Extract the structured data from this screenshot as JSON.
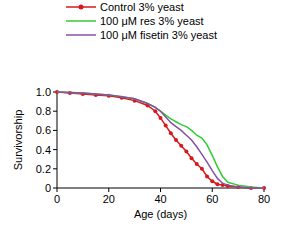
{
  "chart_data": {
    "type": "line",
    "x_label": "Age (days)",
    "y_label": "Survivorship",
    "x": [
      0,
      5,
      10,
      15,
      20,
      25,
      30,
      35,
      38,
      40,
      42,
      44,
      46,
      48,
      50,
      52,
      54,
      56,
      58,
      60,
      62,
      64,
      66,
      70,
      75,
      80
    ],
    "series": [
      {
        "name": "Control 3% yeast",
        "color": "#d7191c",
        "marker": "circle",
        "values": [
          1,
          0.99,
          0.98,
          0.97,
          0.96,
          0.94,
          0.91,
          0.86,
          0.8,
          0.73,
          0.65,
          0.57,
          0.5,
          0.44,
          0.38,
          0.31,
          0.25,
          0.2,
          0.12,
          0.07,
          0.04,
          0.03,
          0.02,
          0.01,
          0,
          0
        ]
      },
      {
        "name": "100 μM res 3% yeast",
        "color": "#33cc33",
        "marker": "none",
        "values": [
          1,
          0.995,
          0.99,
          0.98,
          0.97,
          0.95,
          0.93,
          0.88,
          0.84,
          0.8,
          0.76,
          0.72,
          0.69,
          0.66,
          0.64,
          0.6,
          0.55,
          0.52,
          0.45,
          0.34,
          0.22,
          0.12,
          0.06,
          0.03,
          0.01,
          0
        ]
      },
      {
        "name": "100 μM fisetin 3% yeast",
        "color": "#8a4fa8",
        "marker": "none",
        "values": [
          1,
          0.995,
          0.99,
          0.98,
          0.97,
          0.95,
          0.93,
          0.88,
          0.84,
          0.8,
          0.74,
          0.68,
          0.64,
          0.6,
          0.55,
          0.5,
          0.43,
          0.35,
          0.27,
          0.18,
          0.1,
          0.05,
          0.03,
          0.01,
          0,
          0
        ]
      }
    ],
    "xlim": [
      0,
      80
    ],
    "xticks": [
      0,
      20,
      40,
      60,
      80
    ],
    "ylim": [
      0,
      1
    ],
    "yticks": [
      0,
      0.2,
      0.4,
      0.6,
      0.8,
      {
        "value": 1,
        "label": "1.0"
      }
    ],
    "legend": "top",
    "grid": false
  }
}
